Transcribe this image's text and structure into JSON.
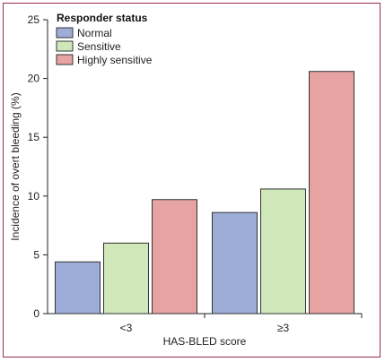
{
  "chart_data": {
    "type": "bar",
    "title": "",
    "xlabel": "HAS-BLED score",
    "ylabel": "Incidence of overt bleeding (%)",
    "categories": [
      "<3",
      "≥3"
    ],
    "ylim": [
      0,
      25
    ],
    "yticks": [
      0,
      5,
      10,
      15,
      20,
      25
    ],
    "grid": false,
    "legend": {
      "title": "Responder status",
      "placement": "top-left"
    },
    "series": [
      {
        "name": "Normal",
        "values": [
          4.4,
          8.6
        ],
        "color": "#9eadd8"
      },
      {
        "name": "Sensitive",
        "values": [
          6.0,
          10.6
        ],
        "color": "#cfe7b9"
      },
      {
        "name": "Highly sensitive",
        "values": [
          9.7,
          20.6
        ],
        "color": "#e6a3a2"
      }
    ]
  }
}
